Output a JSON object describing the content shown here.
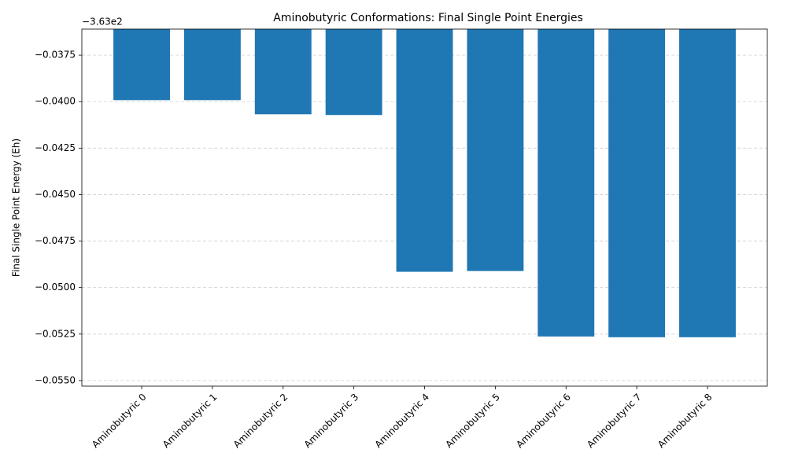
{
  "chart_data": {
    "type": "bar",
    "title": "Aminobutyric Conformations: Final Single Point Energies",
    "y_label": "Final Single Point Energy (Eh)",
    "y_offset_label": "−3.63e2",
    "categories": [
      "Aminobutyric 0",
      "Aminobutyric 1",
      "Aminobutyric 2",
      "Aminobutyric 3",
      "Aminobutyric 4",
      "Aminobutyric 5",
      "Aminobutyric 6",
      "Aminobutyric 7",
      "Aminobutyric 8"
    ],
    "values": [
      -0.03992,
      -0.03992,
      -0.04068,
      -0.04072,
      -0.04915,
      -0.04911,
      -0.05263,
      -0.05267,
      -0.05267
    ],
    "color": "#1f77b4",
    "ylim": [
      -0.0553,
      -0.0361
    ],
    "yticks": [
      {
        "value": -0.0375,
        "label": "−0.0375"
      },
      {
        "value": -0.04,
        "label": "−0.0400"
      },
      {
        "value": -0.0425,
        "label": "−0.0425"
      },
      {
        "value": -0.045,
        "label": "−0.0450"
      },
      {
        "value": -0.0475,
        "label": "−0.0475"
      },
      {
        "value": -0.05,
        "label": "−0.0500"
      },
      {
        "value": -0.0525,
        "label": "−0.0525"
      },
      {
        "value": -0.055,
        "label": "−0.0550"
      }
    ],
    "grid": true
  }
}
